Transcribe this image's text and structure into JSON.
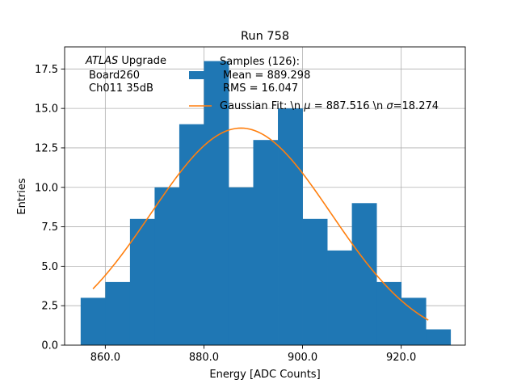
{
  "chart_data": {
    "type": "bar",
    "title": "Run 758",
    "xlabel": "Energy [ADC Counts]",
    "ylabel": "Entries",
    "xlim": [
      851.75,
      933.0
    ],
    "ylim": [
      0,
      18.9
    ],
    "grid": true,
    "xticks": [
      {
        "value": 860,
        "label": "860.0"
      },
      {
        "value": 880,
        "label": "880.0"
      },
      {
        "value": 900,
        "label": "900.0"
      },
      {
        "value": 920,
        "label": "920.0"
      }
    ],
    "yticks": [
      {
        "value": 0,
        "label": "0.0"
      },
      {
        "value": 2.5,
        "label": "2.5"
      },
      {
        "value": 5,
        "label": "5.0"
      },
      {
        "value": 7.5,
        "label": "7.5"
      },
      {
        "value": 10,
        "label": "10.0"
      },
      {
        "value": 12.5,
        "label": "12.5"
      },
      {
        "value": 15,
        "label": "15.0"
      },
      {
        "value": 17.5,
        "label": "17.5"
      }
    ],
    "bin_edges": [
      855,
      860,
      865,
      870,
      875,
      880,
      885,
      890,
      895,
      900,
      905,
      910,
      915,
      920,
      925,
      930
    ],
    "values": [
      3,
      4,
      8,
      10,
      14,
      18,
      10,
      13,
      15,
      8,
      6,
      9,
      4,
      3,
      1
    ],
    "series": [
      {
        "name": "Samples (126):",
        "type": "histogram",
        "color": "#1f77b4"
      },
      {
        "name": "Gaussian Fit",
        "type": "line",
        "color": "#ff7f0e",
        "fit": {
          "mean": 887.516,
          "sigma": 18.274,
          "x_range": [
            857.5,
            925.5
          ]
        }
      }
    ],
    "legend": {
      "placement": "top-center",
      "samples_line1": "Samples (126):",
      "samples_line2": "Mean = 889.298",
      "samples_line3": "RMS = 16.047",
      "fit_prefix": "Gaussian Fit: \\n ",
      "fit_mu_symbol": "μ",
      "fit_mu_value": " = 887.516 \\n ",
      "fit_sigma_symbol": "σ",
      "fit_sigma_value": "=18.274"
    },
    "annotation": {
      "line1_italic": "ATLAS",
      "line1_rest": " Upgrade",
      "line2": "Board260",
      "line3": "Ch011 35dB"
    }
  }
}
